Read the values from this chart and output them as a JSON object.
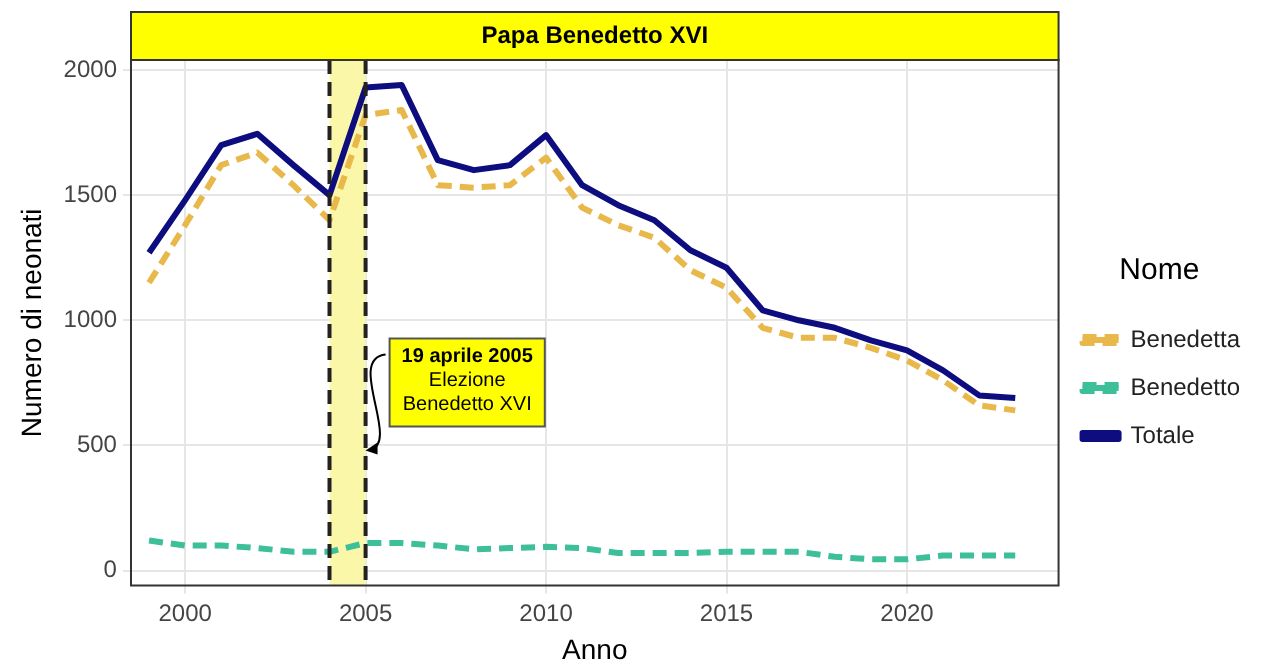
{
  "chart_data": {
    "type": "line",
    "title": "Papa Benedetto XVI",
    "xlabel": "Anno",
    "ylabel": "Numero di neonati",
    "legend_title": "Nome",
    "legend": "right",
    "grid": true,
    "x": [
      1999,
      2000,
      2001,
      2002,
      2003,
      2004,
      2005,
      2006,
      2007,
      2008,
      2009,
      2010,
      2011,
      2012,
      2013,
      2014,
      2015,
      2016,
      2017,
      2018,
      2019,
      2020,
      2021,
      2022,
      2023
    ],
    "series": [
      {
        "name": "Benedetta",
        "color": "#e8b84a",
        "line_style": "dashed",
        "values": [
          1150,
          1380,
          1620,
          1670,
          1540,
          1400,
          1820,
          1840,
          1540,
          1530,
          1540,
          1650,
          1450,
          1380,
          1330,
          1200,
          1130,
          970,
          930,
          930,
          890,
          840,
          760,
          660,
          640
        ]
      },
      {
        "name": "Benedetto",
        "color": "#3dbf9a",
        "line_style": "dashed",
        "values": [
          120,
          100,
          100,
          90,
          75,
          75,
          110,
          110,
          100,
          85,
          90,
          95,
          90,
          70,
          70,
          70,
          75,
          75,
          75,
          55,
          45,
          45,
          60,
          60,
          60
        ]
      },
      {
        "name": "Totale",
        "color": "#0d0d80",
        "line_style": "solid",
        "values": [
          1270,
          1480,
          1700,
          1745,
          1620,
          1500,
          1930,
          1940,
          1640,
          1600,
          1620,
          1740,
          1540,
          1460,
          1400,
          1280,
          1210,
          1040,
          1000,
          970,
          920,
          880,
          800,
          700,
          690
        ]
      }
    ],
    "xlim": [
      1998.5,
      2024.2
    ],
    "ylim": [
      -60,
      2040
    ],
    "xticks": [
      2000,
      2005,
      2010,
      2015,
      2020
    ],
    "yticks": [
      0,
      500,
      1000,
      1500,
      2000
    ],
    "bands": [
      {
        "axis": "x",
        "from": 2004,
        "to": 2005,
        "color": "#fbf7a8"
      }
    ],
    "ref_lines": [
      {
        "axis": "x",
        "value": 2004,
        "line_style": "dashed",
        "color": "#222222"
      },
      {
        "axis": "x",
        "value": 2005,
        "line_style": "dashed",
        "color": "#222222"
      }
    ],
    "annotations": [
      {
        "text": "19 aprile 2005\nElezione\nBenedetto XVI",
        "x": 2005,
        "y": 480
      }
    ]
  }
}
